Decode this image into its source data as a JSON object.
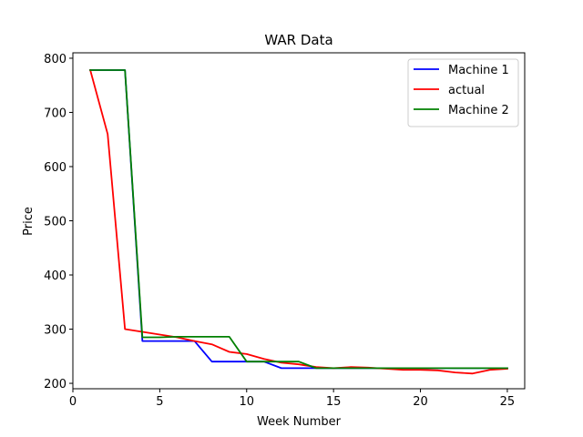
{
  "chart_data": {
    "type": "line",
    "title": "WAR Data",
    "xlabel": "Week Number",
    "ylabel": "Price",
    "xlim": [
      0,
      26
    ],
    "ylim": [
      190,
      810
    ],
    "xticks": [
      0,
      5,
      10,
      15,
      20,
      25
    ],
    "yticks": [
      200,
      300,
      400,
      500,
      600,
      700,
      800
    ],
    "grid": false,
    "legend_position": "top-right",
    "series": [
      {
        "name": "Machine 1",
        "color": "#0000ff",
        "x": [
          1,
          2,
          3,
          4,
          5,
          6,
          7,
          8,
          9,
          10,
          11,
          12,
          13,
          14,
          15,
          16,
          17,
          18,
          19,
          20,
          21,
          22,
          23,
          24,
          25
        ],
        "y": [
          778,
          778,
          778,
          278,
          278,
          278,
          278,
          240,
          240,
          240,
          240,
          228,
          228,
          228,
          228,
          228,
          228,
          228,
          228,
          228,
          228,
          228,
          228,
          228,
          228
        ]
      },
      {
        "name": "actual",
        "color": "#ff0000",
        "x": [
          1,
          2,
          3,
          4,
          5,
          6,
          7,
          8,
          9,
          10,
          11,
          12,
          13,
          14,
          15,
          16,
          17,
          18,
          19,
          20,
          21,
          22,
          23,
          24,
          25
        ],
        "y": [
          778,
          660,
          300,
          295,
          290,
          285,
          278,
          272,
          258,
          254,
          245,
          238,
          235,
          230,
          228,
          230,
          229,
          227,
          225,
          225,
          224,
          220,
          218,
          225,
          227
        ]
      },
      {
        "name": "Machine 2",
        "color": "#008000",
        "x": [
          1,
          2,
          3,
          4,
          5,
          6,
          7,
          8,
          9,
          10,
          11,
          12,
          13,
          14,
          15,
          16,
          17,
          18,
          19,
          20,
          21,
          22,
          23,
          24,
          25
        ],
        "y": [
          778,
          778,
          778,
          285,
          285,
          286,
          286,
          286,
          286,
          240,
          240,
          240,
          240,
          228,
          228,
          228,
          228,
          228,
          228,
          228,
          228,
          228,
          228,
          228,
          228
        ]
      }
    ]
  }
}
